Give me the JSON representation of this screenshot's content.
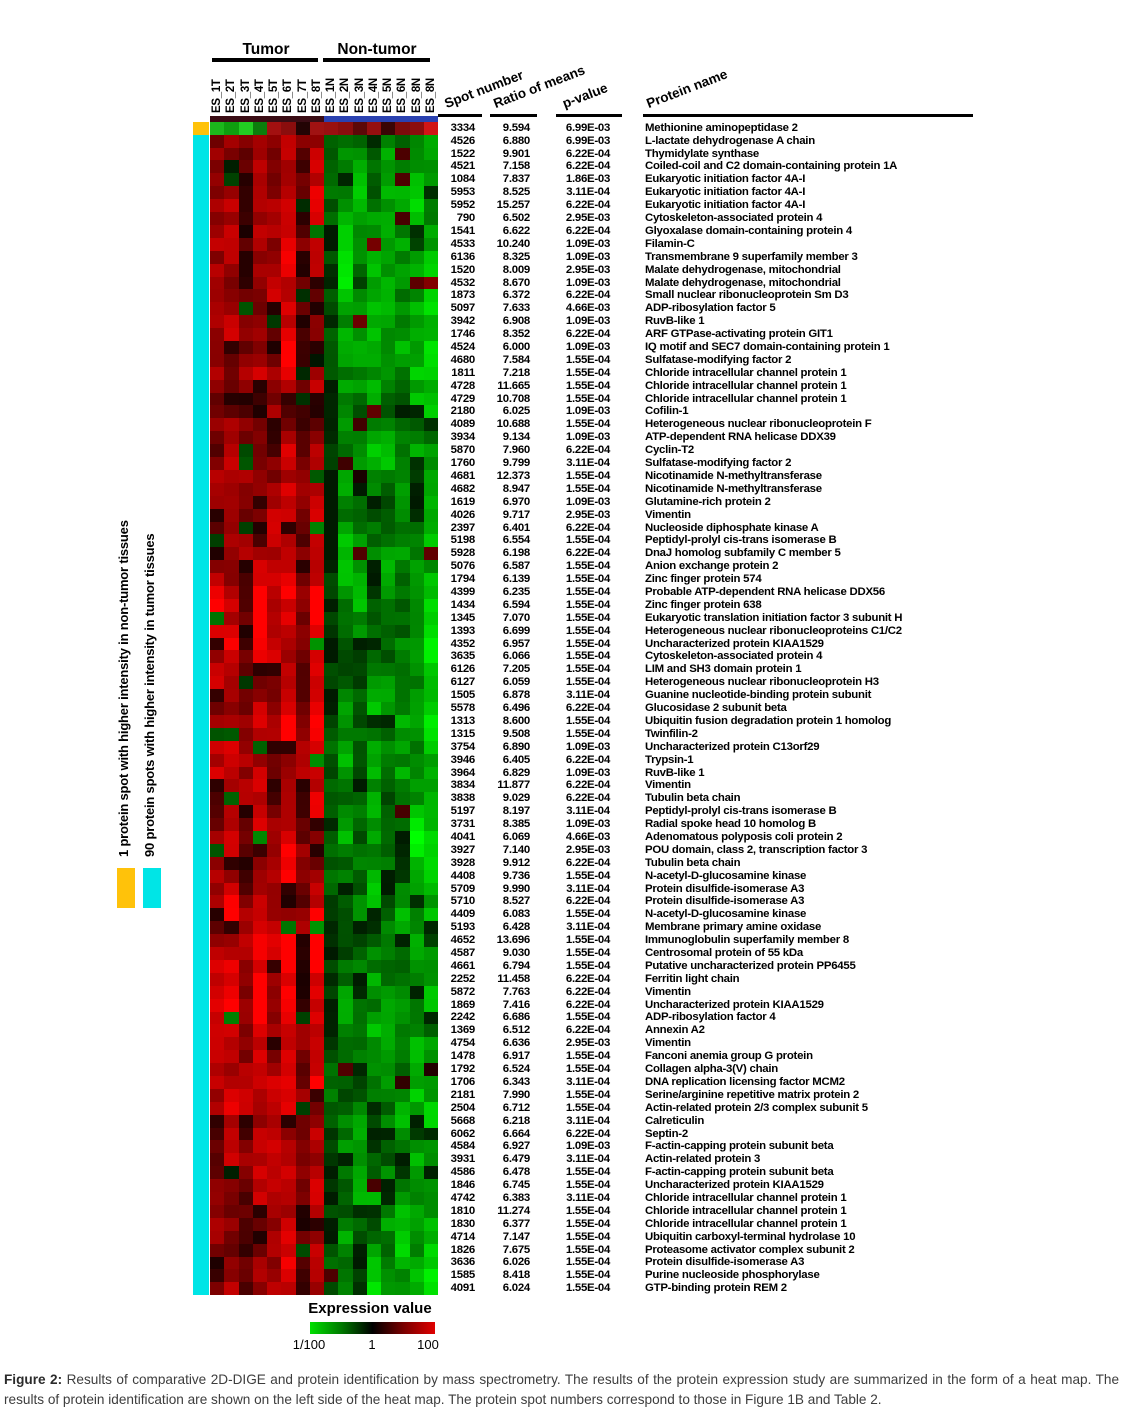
{
  "figure": {
    "caption_label": "Figure 2:",
    "caption_text": " Results of comparative 2D-DIGE and protein identification by mass spectrometry. The results of the protein expression study are summarized in the form of a heat map. The results of protein identification are shown on the left side of the heat map. The protein spot numbers correspond to those in Figure 1B and Table 2."
  },
  "heatmap": {
    "group_labels": [
      "Tumor",
      "Non-tumor"
    ],
    "columns": [
      "ES_1T",
      "ES_2T",
      "ES_3T",
      "ES_4T",
      "ES_5T",
      "ES_6T",
      "ES_7T",
      "ES_8T",
      "ES_1N",
      "ES_2N",
      "ES_3N",
      "ES_4N",
      "ES_5N",
      "ES_6N",
      "ES_8N",
      "ES_8N"
    ],
    "tumor_band_color": "#3a0c14",
    "nontumor_band_color": "#2a41b0",
    "side_markers": [
      {
        "label": "1 protein spot with higher intensity in non-tumor tissues",
        "color": "#ffc20a"
      },
      {
        "label": "90 protein spots with higher intensity in tumor tissues",
        "color": "#00e5e6"
      }
    ],
    "colorbar": {
      "title": "Expression value",
      "tick_labels": [
        "1/100",
        "1",
        "100"
      ],
      "gradient": [
        "#00e000",
        "#007a00",
        "#000000",
        "#7a0000",
        "#e00000"
      ]
    }
  },
  "table": {
    "headers": [
      "Spot number",
      "Ratio of means",
      "p-value",
      "Protein name"
    ],
    "rows": [
      [
        "3334",
        "9.594",
        "6.99E-03",
        "Methionine aminopeptidase 2"
      ],
      [
        "4526",
        "6.880",
        "6.99E-03",
        "L-lactate dehydrogenase A chain"
      ],
      [
        "1522",
        "9.901",
        "6.22E-04",
        "Thymidylate synthase"
      ],
      [
        "4521",
        "7.158",
        "6.22E-04",
        "Coiled-coil and C2 domain-containing protein 1A"
      ],
      [
        "1084",
        "7.837",
        "1.86E-03",
        "Eukaryotic initiation factor 4A-I"
      ],
      [
        "5953",
        "8.525",
        "3.11E-04",
        "Eukaryotic initiation factor 4A-I"
      ],
      [
        "5952",
        "15.257",
        "6.22E-04",
        "Eukaryotic initiation factor 4A-I"
      ],
      [
        "790",
        "6.502",
        "2.95E-03",
        "Cytoskeleton-associated protein 4"
      ],
      [
        "1541",
        "6.622",
        "6.22E-04",
        "Glyoxalase domain-containing protein 4"
      ],
      [
        "4533",
        "10.240",
        "1.09E-03",
        "Filamin-C"
      ],
      [
        "6136",
        "8.325",
        "1.09E-03",
        "Transmembrane 9 superfamily member 3"
      ],
      [
        "1520",
        "8.009",
        "2.95E-03",
        "Malate dehydrogenase, mitochondrial"
      ],
      [
        "4532",
        "8.670",
        "1.09E-03",
        "Malate dehydrogenase, mitochondrial"
      ],
      [
        "1873",
        "6.372",
        "6.22E-04",
        "Small nuclear ribonucleoprotein Sm D3"
      ],
      [
        "5097",
        "7.633",
        "4.66E-03",
        "ADP-ribosylation factor 5"
      ],
      [
        "3942",
        "6.908",
        "1.09E-03",
        "RuvB-like 1"
      ],
      [
        "1746",
        "8.352",
        "6.22E-04",
        "ARF GTPase-activating protein GIT1"
      ],
      [
        "4524",
        "6.000",
        "1.09E-03",
        "IQ motif and SEC7 domain-containing protein 1"
      ],
      [
        "4680",
        "7.584",
        "1.55E-04",
        "Sulfatase-modifying factor 2"
      ],
      [
        "1811",
        "7.218",
        "1.55E-04",
        "Chloride intracellular channel protein 1"
      ],
      [
        "4728",
        "11.665",
        "1.55E-04",
        "Chloride intracellular channel protein 1"
      ],
      [
        "4729",
        "10.708",
        "1.55E-04",
        "Chloride intracellular channel protein 1"
      ],
      [
        "2180",
        "6.025",
        "1.09E-03",
        "Cofilin-1"
      ],
      [
        "4089",
        "10.688",
        "1.55E-04",
        "Heterogeneous nuclear ribonucleoprotein F"
      ],
      [
        "3934",
        "9.134",
        "1.09E-03",
        "ATP-dependent RNA helicase DDX39"
      ],
      [
        "5870",
        "7.960",
        "6.22E-04",
        "Cyclin-T2"
      ],
      [
        "1760",
        "9.799",
        "3.11E-04",
        "Sulfatase-modifying factor 2"
      ],
      [
        "4681",
        "12.373",
        "1.55E-04",
        "Nicotinamide N-methyltransferase"
      ],
      [
        "4682",
        "8.947",
        "1.55E-04",
        "Nicotinamide N-methyltransferase"
      ],
      [
        "1619",
        "6.970",
        "1.09E-03",
        "Glutamine-rich protein 2"
      ],
      [
        "4026",
        "9.717",
        "2.95E-03",
        "Vimentin"
      ],
      [
        "2397",
        "6.401",
        "6.22E-04",
        "Nucleoside diphosphate kinase A"
      ],
      [
        "5198",
        "6.554",
        "1.55E-04",
        "Peptidyl-prolyl cis-trans isomerase B"
      ],
      [
        "5928",
        "6.198",
        "6.22E-04",
        "DnaJ homolog subfamily C member 5"
      ],
      [
        "5076",
        "6.587",
        "1.55E-04",
        "Anion exchange protein 2"
      ],
      [
        "1794",
        "6.139",
        "1.55E-04",
        "Zinc finger protein 574"
      ],
      [
        "4399",
        "6.235",
        "1.55E-04",
        "Probable ATP-dependent RNA helicase DDX56"
      ],
      [
        "1434",
        "6.594",
        "1.55E-04",
        "Zinc finger protein 638"
      ],
      [
        "1345",
        "7.070",
        "1.55E-04",
        "Eukaryotic translation initiation factor 3 subunit H"
      ],
      [
        "1393",
        "6.699",
        "1.55E-04",
        "Heterogeneous nuclear ribonucleoproteins C1/C2"
      ],
      [
        "4352",
        "6.957",
        "1.55E-04",
        "Uncharacterized protein KIAA1529"
      ],
      [
        "3635",
        "6.066",
        "1.55E-04",
        "Cytoskeleton-associated protein 4"
      ],
      [
        "6126",
        "7.205",
        "1.55E-04",
        "LIM and SH3 domain protein 1"
      ],
      [
        "6127",
        "6.059",
        "1.55E-04",
        "Heterogeneous nuclear ribonucleoprotein H3"
      ],
      [
        "1505",
        "6.878",
        "3.11E-04",
        "Guanine nucleotide-binding protein subunit"
      ],
      [
        "5578",
        "6.496",
        "6.22E-04",
        "Glucosidase 2 subunit beta"
      ],
      [
        "1313",
        "8.600",
        "1.55E-04",
        "Ubiquitin fusion degradation protein 1 homolog"
      ],
      [
        "1315",
        "9.508",
        "1.55E-04",
        "Twinfilin-2"
      ],
      [
        "3754",
        "6.890",
        "1.09E-03",
        "Uncharacterized protein C13orf29"
      ],
      [
        "3946",
        "6.405",
        "6.22E-04",
        "Trypsin-1"
      ],
      [
        "3964",
        "6.829",
        "1.09E-03",
        "RuvB-like 1"
      ],
      [
        "3834",
        "11.877",
        "6.22E-04",
        "Vimentin"
      ],
      [
        "3838",
        "9.029",
        "6.22E-04",
        "Tubulin beta chain"
      ],
      [
        "5197",
        "8.197",
        "3.11E-04",
        "Peptidyl-prolyl cis-trans isomerase B"
      ],
      [
        "3731",
        "8.385",
        "1.09E-03",
        "Radial spoke head 10 homolog B"
      ],
      [
        "4041",
        "6.069",
        "4.66E-03",
        "Adenomatous polyposis coli protein 2"
      ],
      [
        "3927",
        "7.140",
        "2.95E-03",
        "POU domain, class 2, transcription factor 3"
      ],
      [
        "3928",
        "9.912",
        "6.22E-04",
        "Tubulin beta chain"
      ],
      [
        "4408",
        "9.736",
        "1.55E-04",
        "N-acetyl-D-glucosamine kinase"
      ],
      [
        "5709",
        "9.990",
        "3.11E-04",
        "Protein disulfide-isomerase A3"
      ],
      [
        "5710",
        "8.527",
        "6.22E-04",
        "Protein disulfide-isomerase A3"
      ],
      [
        "4409",
        "6.083",
        "1.55E-04",
        "N-acetyl-D-glucosamine kinase"
      ],
      [
        "5193",
        "6.428",
        "3.11E-04",
        "Membrane primary amine oxidase"
      ],
      [
        "4652",
        "13.696",
        "1.55E-04",
        "Immunoglobulin superfamily member 8"
      ],
      [
        "4587",
        "9.030",
        "1.55E-04",
        "Centrosomal protein of 55 kDa"
      ],
      [
        "4661",
        "6.794",
        "1.55E-04",
        "Putative uncharacterized protein PP6455"
      ],
      [
        "2252",
        "11.458",
        "6.22E-04",
        "Ferritin light chain"
      ],
      [
        "5872",
        "7.763",
        "6.22E-04",
        "Vimentin"
      ],
      [
        "1869",
        "7.416",
        "6.22E-04",
        "Uncharacterized protein KIAA1529"
      ],
      [
        "2242",
        "6.686",
        "1.55E-04",
        "ADP-ribosylation factor 4"
      ],
      [
        "1369",
        "6.512",
        "6.22E-04",
        "Annexin A2"
      ],
      [
        "4754",
        "6.636",
        "2.95E-03",
        "Vimentin"
      ],
      [
        "1478",
        "6.917",
        "1.55E-04",
        "Fanconi anemia group G protein"
      ],
      [
        "1792",
        "6.524",
        "1.55E-04",
        "Collagen alpha-3(V) chain"
      ],
      [
        "1706",
        "6.343",
        "3.11E-04",
        "DNA replication licensing factor MCM2"
      ],
      [
        "2181",
        "7.990",
        "1.55E-04",
        "Serine/arginine repetitive matrix protein 2"
      ],
      [
        "2504",
        "6.712",
        "1.55E-04",
        "Actin-related protein 2/3 complex subunit 5"
      ],
      [
        "5668",
        "6.218",
        "3.11E-04",
        "Calreticulin"
      ],
      [
        "6062",
        "6.664",
        "6.22E-04",
        "Septin-2"
      ],
      [
        "4584",
        "6.927",
        "1.09E-03",
        "F-actin-capping protein subunit beta"
      ],
      [
        "3931",
        "6.479",
        "3.11E-04",
        "Actin-related protein 3"
      ],
      [
        "4586",
        "6.478",
        "1.55E-04",
        "F-actin-capping protein subunit beta"
      ],
      [
        "1846",
        "6.745",
        "1.55E-04",
        "Uncharacterized protein KIAA1529"
      ],
      [
        "4742",
        "6.383",
        "3.11E-04",
        "Chloride intracellular channel protein 1"
      ],
      [
        "1810",
        "11.274",
        "1.55E-04",
        "Chloride intracellular channel protein 1"
      ],
      [
        "1830",
        "6.377",
        "1.55E-04",
        "Chloride intracellular channel protein 1"
      ],
      [
        "4714",
        "7.147",
        "1.55E-04",
        "Ubiquitin carboxyl-terminal hydrolase 10"
      ],
      [
        "1826",
        "7.675",
        "1.55E-04",
        "Proteasome activator complex subunit 2"
      ],
      [
        "3636",
        "6.026",
        "1.55E-04",
        "Protein disulfide-isomerase A3"
      ],
      [
        "1585",
        "8.418",
        "1.55E-04",
        "Purine nucleoside phosphorylase"
      ],
      [
        "4091",
        "6.024",
        "1.55E-04",
        "GTP-binding protein REM 2"
      ]
    ]
  },
  "chart_data": {
    "type": "heatmap",
    "title": "Comparative 2D-DIGE protein expression heat map",
    "x_labels": [
      "ES_1T",
      "ES_2T",
      "ES_3T",
      "ES_4T",
      "ES_5T",
      "ES_6T",
      "ES_7T",
      "ES_8T",
      "ES_1N",
      "ES_2N",
      "ES_3N",
      "ES_4N",
      "ES_5N",
      "ES_6N",
      "ES_8N",
      "ES_8N"
    ],
    "x_groups": {
      "Tumor": 8,
      "Non-tumor": 8
    },
    "n_rows": 91,
    "value_scale": {
      "min_label": "1/100",
      "mid_label": "1",
      "max_label": "100",
      "low_color": "green",
      "mid_color": "black",
      "high_color": "red"
    },
    "pattern": {
      "rows_higher_in_tumor": 90,
      "rows_higher_in_non_tumor": 1,
      "inverted_row_spot_number": "3334"
    }
  },
  "heatmap_render": {
    "seed": 1337,
    "first_row_colors": [
      "#1cb81c",
      "#0f9f0f",
      "#22cc22",
      "#0c7d0c",
      "#a31010",
      "#8a0d0d",
      "#230404",
      "#a01212",
      "#991010",
      "#8a0d0d",
      "#5c0808",
      "#950f0f",
      "#3a0505",
      "#7d0b0b",
      "#8c0d0d",
      "#d11616"
    ],
    "column_bias": [
      0.0,
      0.04,
      -0.04,
      0.08,
      0.02,
      0.1,
      -0.06,
      0.12,
      -0.14,
      0.0,
      -0.04,
      0.04,
      -0.02,
      0.02,
      0.05,
      0.1
    ]
  }
}
